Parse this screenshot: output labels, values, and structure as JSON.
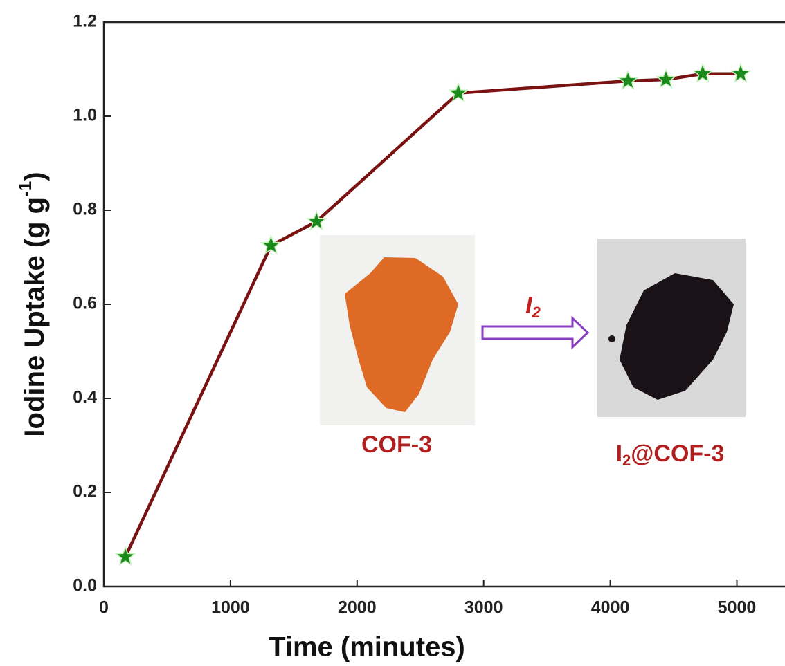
{
  "chart_data": {
    "type": "line",
    "x_label": "Time (minutes)",
    "y_label": {
      "text": "Iodine Uptake (g g",
      "superscript": "-1",
      "suffix": ")"
    },
    "x": [
      170,
      1320,
      1680,
      2800,
      4140,
      4440,
      4730,
      5030
    ],
    "series": [
      {
        "color": "#7a1212",
        "marker_color": "#1a8a1a",
        "values": [
          0.063,
          0.725,
          0.776,
          1.049,
          1.075,
          1.078,
          1.09,
          1.09
        ]
      }
    ],
    "xlim": [
      0,
      5380
    ],
    "ylim": [
      0,
      1.2
    ],
    "xticks": [
      0,
      1000,
      2000,
      3000,
      4000,
      5000
    ],
    "yticks": [
      {
        "value": 0,
        "label": "0.0"
      },
      0.2,
      0.4,
      0.6,
      0.8,
      {
        "value": 1,
        "label": "1.0"
      },
      1.2
    ],
    "annotations": {
      "before": "COF-3",
      "arrow": {
        "text": "I",
        "subscript": "2"
      },
      "after": {
        "text": "I",
        "subscript": "2",
        "suffix": "@COF-3"
      }
    }
  }
}
